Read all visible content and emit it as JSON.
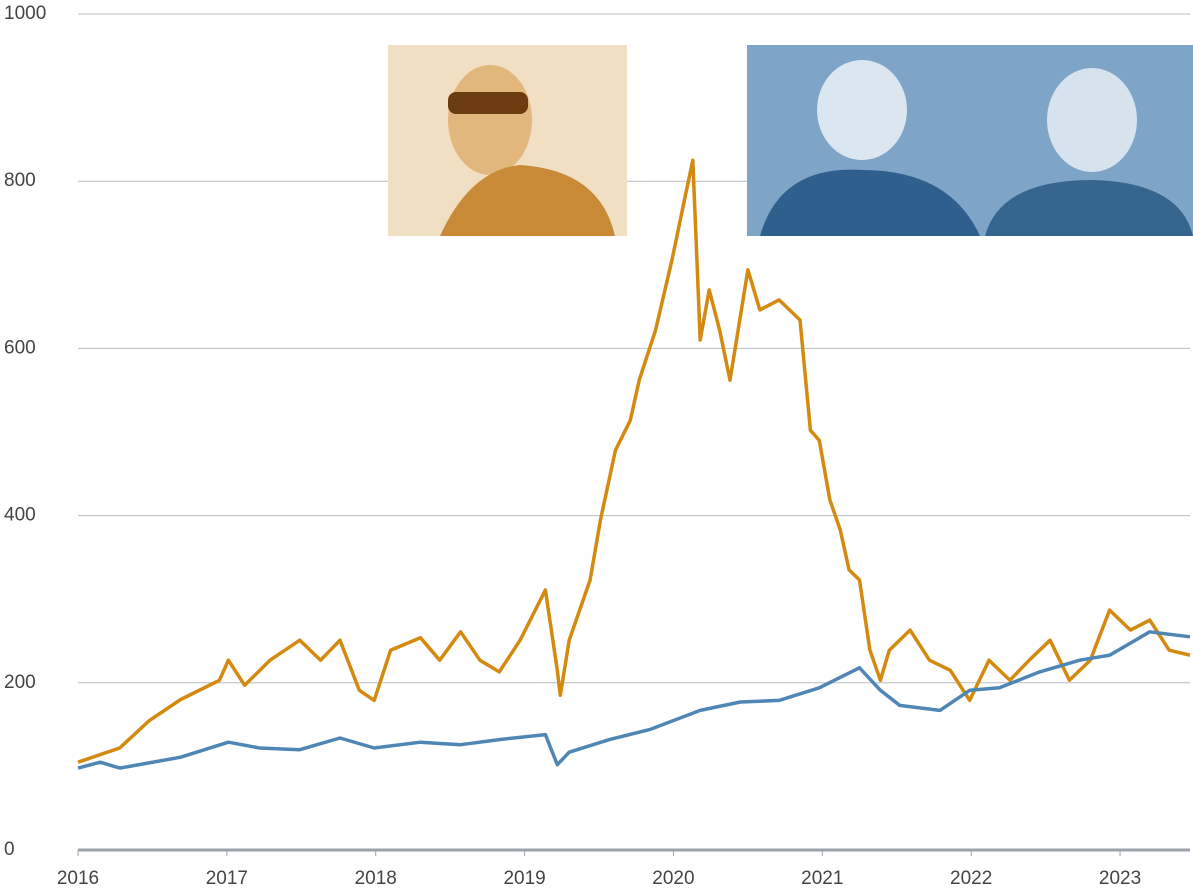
{
  "chart_data": {
    "type": "line",
    "xlim": [
      2016,
      2023.47
    ],
    "xticks": [
      2016,
      2017,
      2018,
      2019,
      2020,
      2021,
      2022,
      2023
    ],
    "ylim": [
      0,
      1000
    ],
    "yticks": [
      0,
      200,
      400,
      600,
      800,
      1000
    ],
    "grid": true,
    "series": [
      {
        "color": "#d4890f",
        "x": [
          2016.0,
          2016.28,
          2016.48,
          2016.69,
          2016.95,
          2017.01,
          2017.12,
          2017.29,
          2017.49,
          2017.63,
          2017.76,
          2017.89,
          2017.99,
          2018.1,
          2018.3,
          2018.43,
          2018.57,
          2018.7,
          2018.83,
          2018.97,
          2019.14,
          2019.22,
          2019.24,
          2019.3,
          2019.44,
          2019.51,
          2019.61,
          2019.71,
          2019.77,
          2019.88,
          2019.99,
          2020.08,
          2020.13,
          2020.18,
          2020.24,
          2020.31,
          2020.38,
          2020.5,
          2020.58,
          2020.71,
          2020.85,
          2020.92,
          2020.98,
          2021.05,
          2021.12,
          2021.18,
          2021.25,
          2021.32,
          2021.39,
          2021.45,
          2021.59,
          2021.72,
          2021.86,
          2021.99,
          2022.12,
          2022.26,
          2022.39,
          2022.53,
          2022.66,
          2022.8,
          2022.93,
          2023.07,
          2023.2,
          2023.33,
          2023.47
        ],
        "values": [
          105,
          122,
          155,
          180,
          203,
          227,
          197,
          227,
          251,
          227,
          251,
          191,
          179,
          239,
          254,
          227,
          261,
          227,
          213,
          251,
          311,
          215,
          185,
          251,
          323,
          395,
          478,
          514,
          562,
          622,
          706,
          783,
          825,
          610,
          670,
          622,
          562,
          694,
          646,
          658,
          634,
          502,
          490,
          419,
          383,
          335,
          323,
          239,
          203,
          239,
          263,
          227,
          215,
          179,
          227,
          203,
          227,
          251,
          203,
          227,
          287,
          263,
          275,
          239,
          233
        ]
      },
      {
        "color": "#4f86b6",
        "x": [
          2016.0,
          2016.15,
          2016.28,
          2016.69,
          2017.01,
          2017.22,
          2017.49,
          2017.76,
          2017.99,
          2018.3,
          2018.57,
          2018.83,
          2019.14,
          2019.22,
          2019.3,
          2019.57,
          2019.84,
          2020.18,
          2020.45,
          2020.71,
          2020.98,
          2021.25,
          2021.39,
          2021.52,
          2021.79,
          2021.99,
          2022.19,
          2022.46,
          2022.73,
          2022.93,
          2023.2,
          2023.47
        ],
        "values": [
          98,
          105,
          98,
          111,
          129,
          122,
          120,
          134,
          122,
          129,
          126,
          132,
          138,
          102,
          117,
          132,
          144,
          167,
          177,
          179,
          194,
          218,
          191,
          173,
          167,
          191,
          194,
          213,
          227,
          233,
          261,
          255
        ]
      }
    ]
  }
}
